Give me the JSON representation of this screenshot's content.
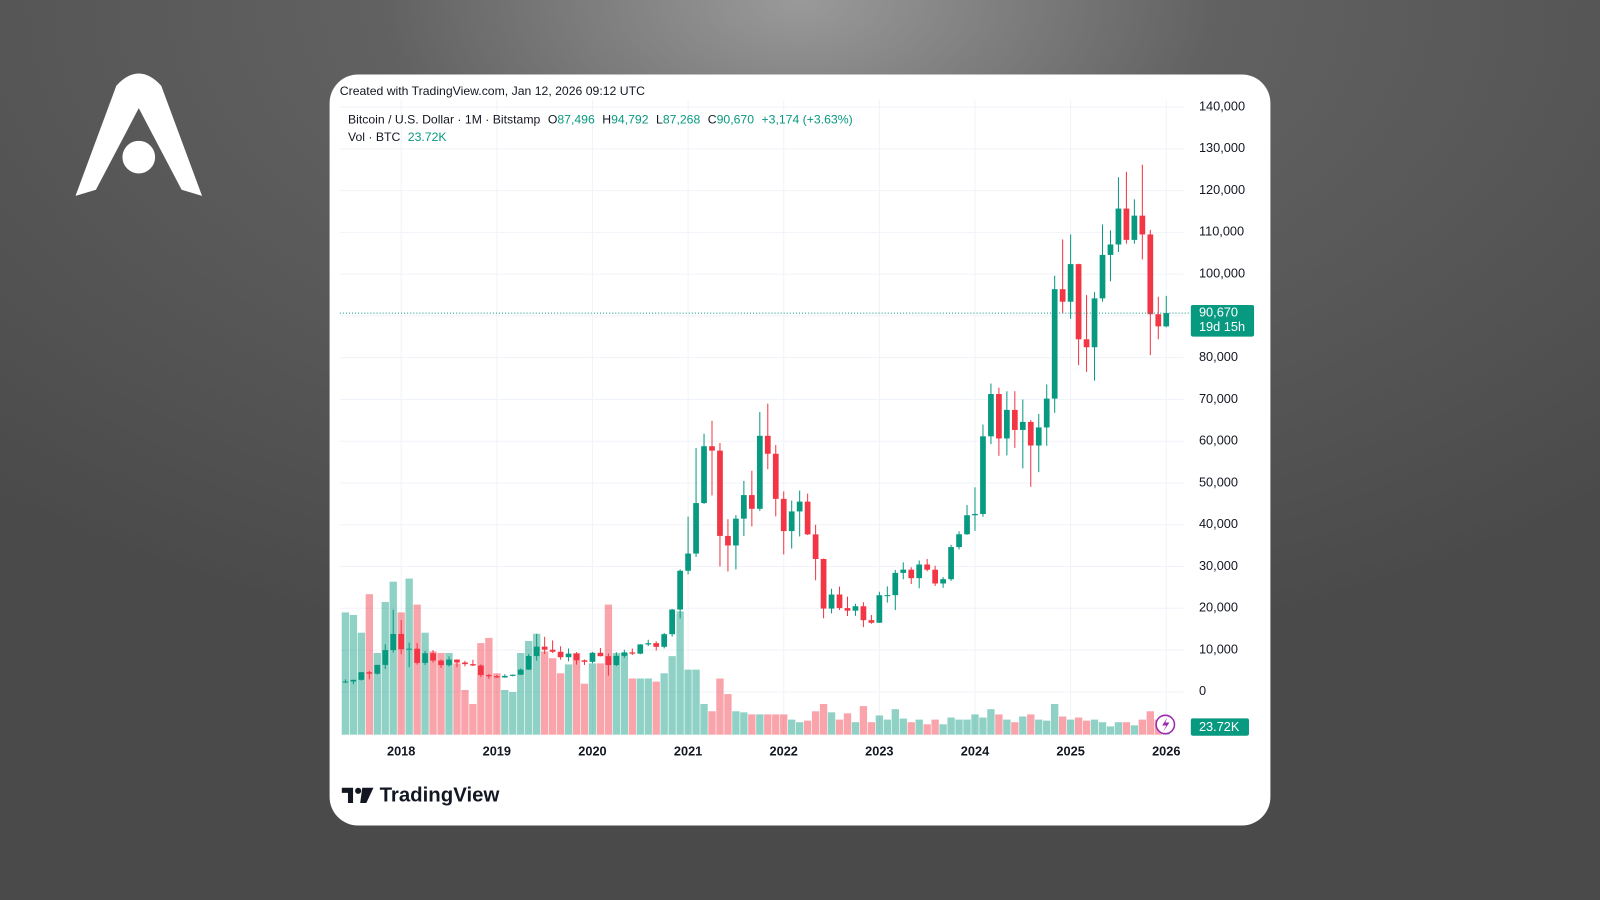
{
  "chart_data": {
    "type": "candlestick",
    "watermark": "Created with TradingView.com, Jan 12, 2026 09:12 UTC",
    "legend": {
      "symbol": "Bitcoin / U.S. Dollar · 1M · Bitstamp",
      "o": "O",
      "open": "87,496",
      "h": "H",
      "high": "94,792",
      "l": "L",
      "low": "87,268",
      "c": "C",
      "close": "90,670",
      "change": "+3,174 (+3.63%)"
    },
    "volume_legend": {
      "name": "Vol · BTC",
      "value": "23.72K"
    },
    "price_label": {
      "value": "90,670",
      "countdown": "19d 15h"
    },
    "volume_label": "23.72K",
    "brand": "TradingView",
    "up_color": "#089981",
    "down_color": "#f23645",
    "x": [
      "2017-06",
      "2017-07",
      "2017-08",
      "2017-09",
      "2017-10",
      "2017-11",
      "2017-12",
      "2018-01",
      "2018-02",
      "2018-03",
      "2018-04",
      "2018-05",
      "2018-06",
      "2018-07",
      "2018-08",
      "2018-09",
      "2018-10",
      "2018-11",
      "2018-12",
      "2019-01",
      "2019-02",
      "2019-03",
      "2019-04",
      "2019-05",
      "2019-06",
      "2019-07",
      "2019-08",
      "2019-09",
      "2019-10",
      "2019-11",
      "2019-12",
      "2020-01",
      "2020-02",
      "2020-03",
      "2020-04",
      "2020-05",
      "2020-06",
      "2020-07",
      "2020-08",
      "2020-09",
      "2020-10",
      "2020-11",
      "2020-12",
      "2021-01",
      "2021-02",
      "2021-03",
      "2021-04",
      "2021-05",
      "2021-06",
      "2021-07",
      "2021-08",
      "2021-09",
      "2021-10",
      "2021-11",
      "2021-12",
      "2022-01",
      "2022-02",
      "2022-03",
      "2022-04",
      "2022-05",
      "2022-06",
      "2022-07",
      "2022-08",
      "2022-09",
      "2022-10",
      "2022-11",
      "2022-12",
      "2023-01",
      "2023-02",
      "2023-03",
      "2023-04",
      "2023-05",
      "2023-06",
      "2023-07",
      "2023-08",
      "2023-09",
      "2023-10",
      "2023-11",
      "2023-12",
      "2024-01",
      "2024-02",
      "2024-03",
      "2024-04",
      "2024-05",
      "2024-06",
      "2024-07",
      "2024-08",
      "2024-09",
      "2024-10",
      "2024-11",
      "2024-12",
      "2025-01",
      "2025-02",
      "2025-03",
      "2025-04",
      "2025-05",
      "2025-06",
      "2025-07",
      "2025-08",
      "2025-09",
      "2025-10",
      "2025-11",
      "2025-12",
      "2026-01"
    ],
    "open": [
      2400,
      2480,
      2870,
      4700,
      4340,
      6450,
      10000,
      13850,
      10200,
      10330,
      6930,
      9240,
      7490,
      6390,
      7730,
      7020,
      6630,
      6310,
      4020,
      3740,
      3440,
      3820,
      4100,
      5320,
      8570,
      10820,
      10080,
      9590,
      8290,
      9150,
      7550,
      7190,
      9350,
      8540,
      6410,
      8620,
      9450,
      9140,
      11350,
      11650,
      10780,
      13800,
      19700,
      28990,
      33110,
      45190,
      58800,
      57750,
      37330,
      35040,
      41460,
      47100,
      43820,
      61300,
      57000,
      46200,
      38480,
      43190,
      45540,
      37700,
      31800,
      19930,
      23300,
      20050,
      19430,
      20490,
      17160,
      16540,
      23130,
      23150,
      28480,
      29250,
      27220,
      30480,
      29240,
      25940,
      26970,
      34660,
      37720,
      42280,
      42580,
      61170,
      71300,
      60660,
      67500,
      62700,
      64620,
      58970,
      63300,
      70200,
      96400,
      93400,
      102400,
      84400,
      82500,
      94200,
      104600,
      107100,
      115700,
      108200,
      114000,
      109500,
      90400,
      87496
    ],
    "high": [
      2980,
      2920,
      4740,
      4980,
      6470,
      11390,
      19660,
      17200,
      11800,
      11700,
      9770,
      9990,
      7780,
      8490,
      7760,
      7410,
      7680,
      6560,
      4310,
      4100,
      4200,
      4140,
      5610,
      9080,
      13880,
      13200,
      12330,
      10920,
      10370,
      9510,
      7750,
      9580,
      10500,
      9180,
      9470,
      10070,
      10380,
      11420,
      12480,
      12090,
      14100,
      19860,
      29300,
      41950,
      58350,
      61800,
      64900,
      59600,
      41330,
      42320,
      50500,
      52920,
      67000,
      69000,
      59100,
      47990,
      45800,
      48190,
      47460,
      40000,
      31900,
      24670,
      25200,
      22800,
      21080,
      21450,
      18400,
      23960,
      25250,
      29190,
      31000,
      29820,
      31440,
      31800,
      30190,
      27480,
      35200,
      38430,
      44720,
      48970,
      64000,
      73800,
      72800,
      71950,
      71970,
      70000,
      65100,
      66500,
      73600,
      99600,
      108300,
      109500,
      102500,
      95000,
      95700,
      111900,
      110500,
      123200,
      124500,
      117900,
      126200,
      110600,
      94600,
      94792
    ],
    "low": [
      2100,
      1830,
      2670,
      2970,
      4110,
      5510,
      9400,
      9000,
      5900,
      6530,
      6430,
      7030,
      5750,
      6070,
      5880,
      6100,
      6200,
      3550,
      3130,
      3350,
      3380,
      3700,
      4040,
      5280,
      7450,
      9070,
      9330,
      7710,
      7300,
      6520,
      6430,
      6850,
      8470,
      3850,
      6150,
      8130,
      8830,
      8990,
      10950,
      9880,
      10420,
      13220,
      17570,
      28130,
      32300,
      45000,
      47000,
      30000,
      28800,
      29300,
      37330,
      39600,
      43300,
      53300,
      42000,
      32900,
      34300,
      37200,
      37550,
      26700,
      17600,
      18780,
      19600,
      18150,
      18200,
      15500,
      16300,
      16500,
      21380,
      19570,
      26950,
      25800,
      24800,
      28860,
      25360,
      24900,
      26560,
      34100,
      37600,
      38550,
      41900,
      59300,
      56500,
      56600,
      58400,
      53500,
      49100,
      52600,
      58900,
      66800,
      90600,
      89300,
      78200,
      76600,
      74500,
      93400,
      98300,
      105300,
      107300,
      107300,
      103500,
      80600,
      84400,
      87268
    ],
    "close": [
      2480,
      2870,
      4700,
      4340,
      6450,
      10000,
      13850,
      10200,
      10330,
      6930,
      9240,
      7490,
      6390,
      7730,
      7020,
      6630,
      6310,
      4020,
      3740,
      3440,
      3820,
      4100,
      5320,
      8570,
      10820,
      10080,
      9590,
      8290,
      9150,
      7550,
      7190,
      9350,
      8540,
      6410,
      8620,
      9450,
      9140,
      11350,
      11650,
      10780,
      13800,
      19700,
      28990,
      33110,
      45190,
      58800,
      57750,
      37330,
      35040,
      41460,
      47100,
      43820,
      61300,
      57000,
      46200,
      38480,
      43190,
      45540,
      37700,
      31800,
      19930,
      23300,
      20050,
      19430,
      20490,
      17160,
      16540,
      23130,
      23150,
      28480,
      29250,
      27220,
      30480,
      29240,
      25940,
      26970,
      34660,
      37720,
      42280,
      42580,
      61170,
      71300,
      60660,
      67500,
      62700,
      64620,
      58970,
      63300,
      70200,
      96400,
      93400,
      102400,
      84400,
      82500,
      94200,
      104600,
      107100,
      115700,
      108200,
      114000,
      109500,
      90400,
      87496,
      90670
    ],
    "volume": [
      235000,
      230000,
      196000,
      270000,
      157000,
      255000,
      294000,
      235000,
      300000,
      250000,
      196000,
      160000,
      157000,
      157000,
      137000,
      86000,
      59000,
      176000,
      186000,
      118000,
      86000,
      82000,
      157000,
      180000,
      194000,
      160000,
      147000,
      118000,
      135000,
      157000,
      98000,
      137000,
      137000,
      250000,
      157000,
      157000,
      108000,
      108000,
      108000,
      102000,
      118000,
      151000,
      237000,
      125000,
      125000,
      59000,
      45000,
      108000,
      78000,
      45000,
      43000,
      39000,
      39000,
      39000,
      39000,
      39000,
      29000,
      24000,
      27000,
      45000,
      59000,
      43000,
      29000,
      41000,
      24000,
      55000,
      24000,
      37000,
      29000,
      49000,
      31000,
      24000,
      29000,
      20000,
      29000,
      20000,
      33000,
      29000,
      29000,
      39000,
      33000,
      49000,
      39000,
      29000,
      24000,
      35000,
      39000,
      29000,
      27000,
      59000,
      35000,
      29000,
      33000,
      27000,
      29000,
      24000,
      16000,
      24000,
      24000,
      18000,
      29000,
      45000,
      29000,
      23720
    ],
    "volume_lim": [
      0,
      300000
    ],
    "ylim": [
      -10260,
      141200
    ],
    "yticks": [
      0,
      {
        "value": 10000,
        "label": "10,000"
      },
      {
        "value": 20000,
        "label": "20,000"
      },
      {
        "value": 30000,
        "label": "30,000"
      },
      {
        "value": 40000,
        "label": "40,000"
      },
      {
        "value": 50000,
        "label": "50,000"
      },
      {
        "value": 60000,
        "label": "60,000"
      },
      {
        "value": 70000,
        "label": "70,000"
      },
      {
        "value": 80000,
        "label": "80,000"
      },
      {
        "value": 90000,
        "label": "90,000"
      },
      {
        "value": 100000,
        "label": "100,000"
      },
      {
        "value": 110000,
        "label": "110,000"
      },
      {
        "value": 120000,
        "label": "120,000"
      },
      {
        "value": 130000,
        "label": "130,000"
      },
      {
        "value": 140000,
        "label": "140,000"
      }
    ],
    "xticks": [
      {
        "value": "2018-01",
        "label": "2018"
      },
      {
        "value": "2019-01",
        "label": "2019"
      },
      {
        "value": "2020-01",
        "label": "2020"
      },
      {
        "value": "2021-01",
        "label": "2021"
      },
      {
        "value": "2022-01",
        "label": "2022"
      },
      {
        "value": "2023-01",
        "label": "2023"
      },
      {
        "value": "2024-01",
        "label": "2024"
      },
      {
        "value": "2025-01",
        "label": "2025"
      },
      {
        "value": "2026-01",
        "label": "2026"
      }
    ],
    "grid": true
  }
}
